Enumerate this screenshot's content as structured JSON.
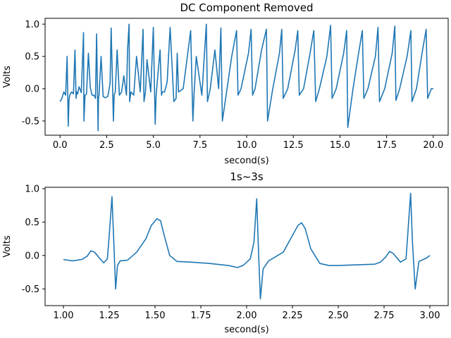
{
  "chart_data": [
    {
      "type": "line",
      "title": "DC Component Removed",
      "xlabel": "second(s)",
      "ylabel": "Volts",
      "xlim": [
        -0.8,
        20.8
      ],
      "ylim": [
        -0.72,
        1.09
      ],
      "xticks": [
        0.0,
        2.5,
        5.0,
        7.5,
        10.0,
        12.5,
        15.0,
        17.5,
        20.0
      ],
      "xtick_labels": [
        "0.0",
        "2.5",
        "5.0",
        "7.5",
        "10.0",
        "12.5",
        "15.0",
        "17.5",
        "20.0"
      ],
      "yticks": [
        1.0,
        0.5,
        0.0,
        -0.5
      ],
      "ytick_labels": [
        "1.0",
        "0.5",
        "0.0",
        "-0.5"
      ],
      "grid": false,
      "series": [
        {
          "color": "#1f77b4",
          "x": [
            0.0,
            0.1,
            0.2,
            0.3,
            0.38,
            0.44,
            0.48,
            0.52,
            0.62,
            0.72,
            0.8,
            0.86,
            0.9,
            0.94,
            1.02,
            1.14,
            1.26,
            1.28,
            1.34,
            1.42,
            1.52,
            1.62,
            1.72,
            1.82,
            1.9,
            1.96,
            2.04,
            2.06,
            2.09,
            2.2,
            2.31,
            2.42,
            2.56,
            2.68,
            2.74,
            2.86,
            2.9,
            2.96,
            3.06,
            3.18,
            3.3,
            3.42,
            3.56,
            3.62,
            3.7,
            3.73,
            3.8,
            3.95,
            4.1,
            4.3,
            4.45,
            4.5,
            4.55,
            4.58,
            4.66,
            4.86,
            5.0,
            5.1,
            5.15,
            5.36,
            5.44,
            5.48,
            5.6,
            5.74,
            5.9,
            6.1,
            6.22,
            6.28,
            6.35,
            6.6,
            7.0,
            7.12,
            7.18,
            7.3,
            7.6,
            7.84,
            7.9,
            8.05,
            8.3,
            8.5,
            8.62,
            8.7,
            8.9,
            9.2,
            9.46,
            9.54,
            9.7,
            10.1,
            10.24,
            10.32,
            10.45,
            10.8,
            11.06,
            11.12,
            11.4,
            11.76,
            11.88,
            11.96,
            12.2,
            12.6,
            12.74,
            12.82,
            13.05,
            13.4,
            13.6,
            13.7,
            13.9,
            14.3,
            14.5,
            14.58,
            14.8,
            15.2,
            15.36,
            15.42,
            15.7,
            16.0,
            16.2,
            16.28,
            16.5,
            16.9,
            17.04,
            17.12,
            17.4,
            17.8,
            17.94,
            18.0,
            18.2,
            18.6,
            18.8,
            18.86,
            19.1,
            19.4,
            19.62,
            19.7,
            19.9,
            20.0
          ],
          "y": [
            -0.2,
            -0.15,
            -0.05,
            -0.1,
            0.5,
            -0.58,
            -0.18,
            -0.1,
            -0.05,
            -0.08,
            0.6,
            -0.15,
            -0.05,
            -0.08,
            0.03,
            -0.06,
            0.87,
            -0.5,
            -0.1,
            -0.08,
            0.55,
            0.02,
            -0.1,
            -0.1,
            -0.15,
            0.85,
            -0.65,
            -0.15,
            -0.1,
            0.5,
            -0.12,
            -0.14,
            -0.12,
            0.08,
            0.94,
            -0.5,
            -0.1,
            -0.05,
            0.6,
            -0.1,
            -0.05,
            0.2,
            -0.1,
            0.6,
            1.0,
            -0.2,
            -0.05,
            -0.1,
            0.5,
            -0.05,
            0.92,
            -0.2,
            -0.1,
            -0.05,
            0.45,
            -0.05,
            0.95,
            -0.55,
            -0.1,
            0.6,
            -0.1,
            -0.05,
            -0.05,
            0.1,
            0.95,
            -0.2,
            -0.15,
            0.55,
            -0.05,
            0.0,
            0.9,
            -0.5,
            -0.1,
            0.5,
            -0.1,
            1.0,
            -0.2,
            0.0,
            0.6,
            0.0,
            0.94,
            -0.5,
            -0.1,
            0.5,
            0.9,
            -0.1,
            0.0,
            0.55,
            0.92,
            -0.1,
            0.0,
            0.6,
            0.92,
            -0.5,
            0.0,
            0.55,
            0.92,
            -0.15,
            0.0,
            0.6,
            0.9,
            -0.1,
            0.0,
            0.55,
            0.9,
            -0.2,
            0.0,
            0.5,
            0.98,
            -0.15,
            0.0,
            0.55,
            0.9,
            -0.6,
            0.0,
            0.55,
            0.9,
            -0.15,
            0.0,
            0.5,
            0.95,
            -0.2,
            0.0,
            0.55,
            0.97,
            -0.18,
            0.0,
            0.5,
            0.9,
            -0.2,
            0.0,
            0.55,
            0.92,
            -0.15,
            0.0,
            0.0
          ]
        }
      ]
    },
    {
      "type": "line",
      "title": "1s~3s",
      "xlabel": "second(s)",
      "ylabel": "Volts",
      "xlim": [
        0.9,
        3.1
      ],
      "ylim": [
        -0.75,
        1.02
      ],
      "xticks": [
        1.0,
        1.25,
        1.5,
        1.75,
        2.0,
        2.25,
        2.5,
        2.75,
        3.0
      ],
      "xtick_labels": [
        "1.00",
        "1.25",
        "1.50",
        "1.75",
        "2.00",
        "2.25",
        "2.50",
        "2.75",
        "3.00"
      ],
      "yticks": [
        1.0,
        0.5,
        0.0,
        -0.5
      ],
      "ytick_labels": [
        "1.0",
        "0.5",
        "0.0",
        "-0.5"
      ],
      "grid": false,
      "series": [
        {
          "color": "#1f77b4",
          "x": [
            1.0,
            1.05,
            1.1,
            1.13,
            1.15,
            1.17,
            1.2,
            1.22,
            1.24,
            1.25,
            1.265,
            1.275,
            1.285,
            1.295,
            1.31,
            1.35,
            1.4,
            1.45,
            1.48,
            1.51,
            1.53,
            1.55,
            1.58,
            1.62,
            1.7,
            1.8,
            1.9,
            1.95,
            1.98,
            2.02,
            2.04,
            2.055,
            2.065,
            2.075,
            2.09,
            2.12,
            2.2,
            2.25,
            2.28,
            2.3,
            2.32,
            2.35,
            2.4,
            2.45,
            2.5,
            2.6,
            2.7,
            2.73,
            2.76,
            2.78,
            2.8,
            2.84,
            2.87,
            2.895,
            2.905,
            2.92,
            2.94,
            2.98,
            3.0
          ],
          "y": [
            -0.06,
            -0.08,
            -0.06,
            -0.01,
            0.07,
            0.05,
            -0.05,
            -0.11,
            -0.05,
            0.3,
            0.88,
            0.2,
            -0.5,
            -0.15,
            -0.08,
            -0.07,
            0.05,
            0.25,
            0.45,
            0.55,
            0.52,
            0.3,
            0.0,
            -0.09,
            -0.1,
            -0.12,
            -0.15,
            -0.18,
            -0.15,
            -0.05,
            0.2,
            0.85,
            0.05,
            -0.65,
            -0.2,
            -0.08,
            0.05,
            0.3,
            0.45,
            0.49,
            0.4,
            0.1,
            -0.12,
            -0.15,
            -0.15,
            -0.14,
            -0.13,
            -0.1,
            -0.02,
            0.06,
            0.03,
            -0.1,
            -0.05,
            0.93,
            0.2,
            -0.5,
            -0.09,
            -0.04,
            0.0
          ]
        }
      ]
    }
  ]
}
